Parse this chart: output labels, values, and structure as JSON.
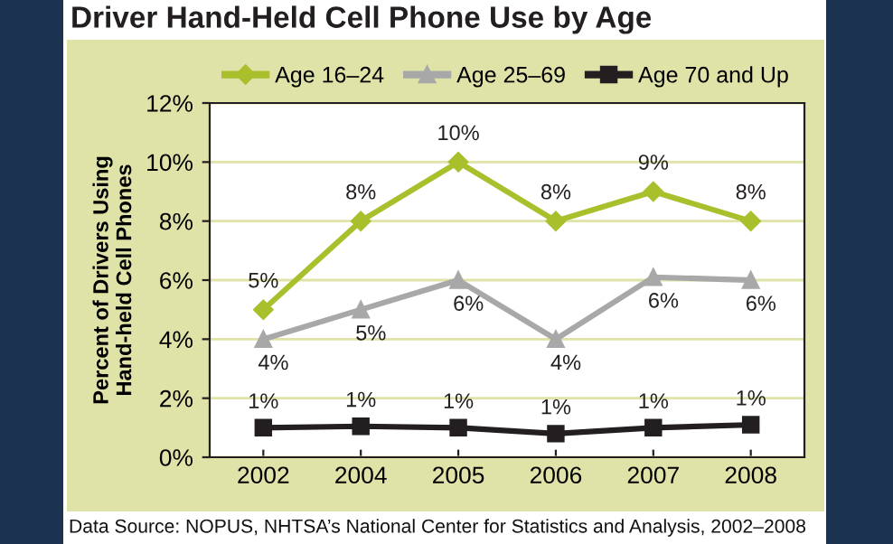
{
  "chart_data": {
    "type": "line",
    "title": "Driver Hand-Held Cell Phone Use by Age",
    "ylabel": "Percent of Drivers Using\nHand-held Cell Phones",
    "categories": [
      "2002",
      "2004",
      "2005",
      "2006",
      "2007",
      "2008"
    ],
    "series": [
      {
        "name": "Age 16–24",
        "color": "#a9bf2c",
        "marker": "diamond",
        "values": [
          5,
          8,
          10,
          8,
          9,
          8
        ],
        "value_labels": [
          "5%",
          "8%",
          "10%",
          "8%",
          "9%",
          "8%"
        ]
      },
      {
        "name": "Age 25–69",
        "color": "#a8a8a8",
        "marker": "triangle",
        "values": [
          4,
          5,
          6,
          4,
          6.1,
          6
        ],
        "value_labels": [
          "4%",
          "5%",
          "6%",
          "4%",
          "6%",
          "6%"
        ]
      },
      {
        "name": "Age 70 and Up",
        "color": "#231f20",
        "marker": "square",
        "values": [
          1,
          1.05,
          1,
          0.8,
          1,
          1.1
        ],
        "value_labels": [
          "1%",
          "1%",
          "1%",
          "1%",
          "1%",
          "1%"
        ]
      }
    ],
    "ylim": [
      0,
      12
    ],
    "yticks": [
      {
        "value": 0,
        "label": "0%"
      },
      {
        "value": 2,
        "label": "2%"
      },
      {
        "value": 4,
        "label": "4%"
      },
      {
        "value": 6,
        "label": "6%"
      },
      {
        "value": 8,
        "label": "8%"
      },
      {
        "value": 10,
        "label": "10%"
      },
      {
        "value": 12,
        "label": "12%"
      }
    ],
    "grid": "y",
    "legend": "top",
    "line_style": "solid",
    "annotations": [
      "Data Source: NOPUS, NHTSA’s National Center for Statistics and Analysis, 2002–2008"
    ]
  }
}
